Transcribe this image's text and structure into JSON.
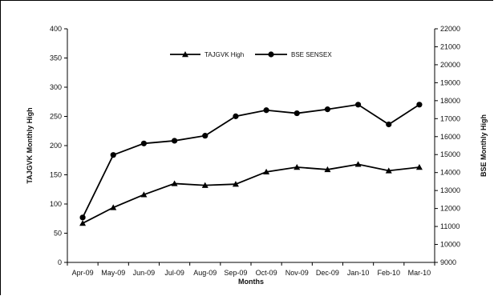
{
  "chart_data": {
    "type": "line",
    "xlabel": "Months",
    "ylabel_left": "TAJGVK Monthly High",
    "ylabel_right": "BSE Monthly High",
    "categories": [
      "Apr-09",
      "May-09",
      "Jun-09",
      "Jul-09",
      "Aug-09",
      "Sep-09",
      "Oct-09",
      "Nov-09",
      "Dec-09",
      "Jan-10",
      "Feb-10",
      "Mar-10"
    ],
    "ylim_left": [
      0,
      400
    ],
    "ylim_right": [
      9000,
      22000
    ],
    "yticks_left": [
      "0",
      "50",
      "100",
      "150",
      "200",
      "250",
      "300",
      "350",
      "400"
    ],
    "yticks_right": [
      "9000",
      "10000",
      "11000",
      "12000",
      "13000",
      "14000",
      "15000",
      "16000",
      "17000",
      "18000",
      "19000",
      "20000",
      "21000",
      "22000"
    ],
    "series": [
      {
        "name": "TAJGVK High",
        "axis": "left",
        "marker": "triangle",
        "values": [
          67,
          94,
          116,
          135,
          132,
          134,
          155,
          163,
          159,
          168,
          157,
          163
        ]
      },
      {
        "name": "BSE SENSEX",
        "axis": "right",
        "marker": "circle",
        "values": [
          11500,
          14980,
          15620,
          15770,
          16050,
          17130,
          17470,
          17300,
          17520,
          17780,
          16680,
          17780
        ]
      }
    ],
    "grid": false,
    "legend": "top"
  }
}
